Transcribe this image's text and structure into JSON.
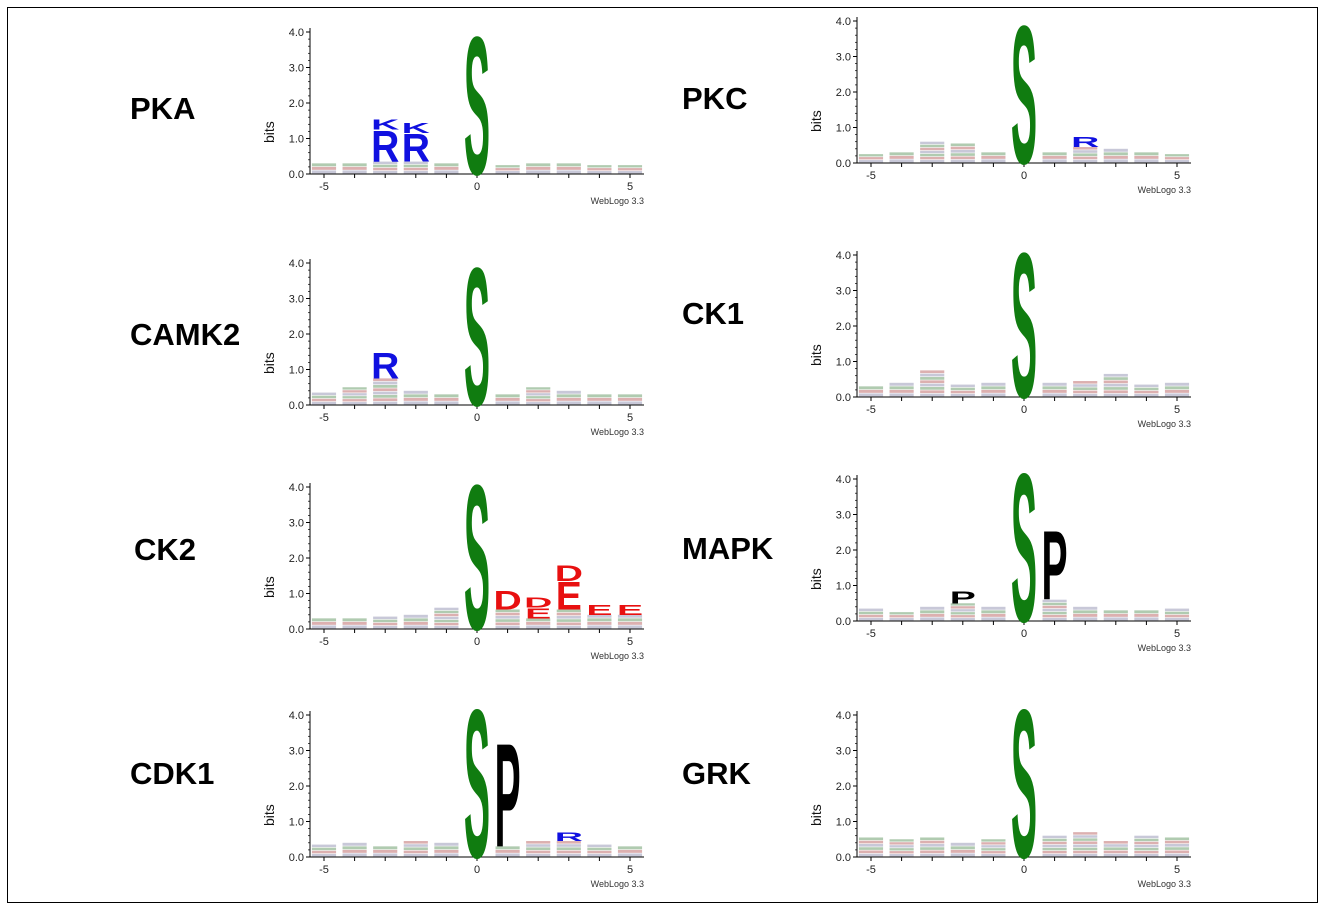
{
  "colors": {
    "green": "#107C10",
    "blue": "#1010E0",
    "red": "#E81010",
    "black": "#000000",
    "axis": "#000000"
  },
  "axis": {
    "ylabel": "bits",
    "yticks": [
      "0.0",
      "1.0",
      "2.0",
      "3.0",
      "4.0"
    ],
    "xticks": [
      "-5",
      "0",
      "5"
    ],
    "watermark": "WebLogo 3.3"
  },
  "chart_data": [
    {
      "type": "sequence-logo",
      "title": "PKA",
      "xlim": [
        -6,
        6
      ],
      "ylim": [
        0,
        4
      ],
      "stacks": [
        {
          "x": -5,
          "total": 0.3,
          "letters": []
        },
        {
          "x": -4,
          "total": 0.3,
          "letters": []
        },
        {
          "x": -3,
          "total": 1.55,
          "letters": [
            [
              "R",
              0.9,
              "blue"
            ],
            [
              "K",
              0.3,
              "blue"
            ]
          ]
        },
        {
          "x": -2,
          "total": 1.45,
          "letters": [
            [
              "R",
              0.8,
              "blue"
            ],
            [
              "K",
              0.3,
              "blue"
            ]
          ]
        },
        {
          "x": -1,
          "total": 0.3,
          "letters": []
        },
        {
          "x": 0,
          "total": 4.0,
          "letters": [
            [
              "S",
              4.0,
              "green"
            ]
          ]
        },
        {
          "x": 1,
          "total": 0.25,
          "letters": []
        },
        {
          "x": 2,
          "total": 0.3,
          "letters": []
        },
        {
          "x": 3,
          "total": 0.3,
          "letters": []
        },
        {
          "x": 4,
          "total": 0.25,
          "letters": []
        },
        {
          "x": 5,
          "total": 0.25,
          "letters": []
        }
      ]
    },
    {
      "type": "sequence-logo",
      "title": "PKC",
      "xlim": [
        -6,
        6
      ],
      "ylim": [
        0,
        4
      ],
      "stacks": [
        {
          "x": -5,
          "total": 0.25,
          "letters": []
        },
        {
          "x": -4,
          "total": 0.3,
          "letters": []
        },
        {
          "x": -3,
          "total": 0.6,
          "letters": []
        },
        {
          "x": -2,
          "total": 0.55,
          "letters": []
        },
        {
          "x": -1,
          "total": 0.3,
          "letters": []
        },
        {
          "x": 0,
          "total": 4.0,
          "letters": [
            [
              "S",
              4.0,
              "green"
            ]
          ]
        },
        {
          "x": 1,
          "total": 0.3,
          "letters": []
        },
        {
          "x": 2,
          "total": 0.75,
          "letters": [
            [
              "R",
              0.3,
              "blue"
            ]
          ]
        },
        {
          "x": 3,
          "total": 0.4,
          "letters": []
        },
        {
          "x": 4,
          "total": 0.3,
          "letters": []
        },
        {
          "x": 5,
          "total": 0.25,
          "letters": []
        }
      ]
    },
    {
      "type": "sequence-logo",
      "title": "CAMK2",
      "xlim": [
        -6,
        6
      ],
      "ylim": [
        0,
        4
      ],
      "stacks": [
        {
          "x": -5,
          "total": 0.35,
          "letters": []
        },
        {
          "x": -4,
          "total": 0.5,
          "letters": []
        },
        {
          "x": -3,
          "total": 1.5,
          "letters": [
            [
              "R",
              0.75,
              "blue"
            ]
          ]
        },
        {
          "x": -2,
          "total": 0.4,
          "letters": []
        },
        {
          "x": -1,
          "total": 0.3,
          "letters": []
        },
        {
          "x": 0,
          "total": 4.0,
          "letters": [
            [
              "S",
              4.0,
              "green"
            ]
          ]
        },
        {
          "x": 1,
          "total": 0.3,
          "letters": []
        },
        {
          "x": 2,
          "total": 0.5,
          "letters": []
        },
        {
          "x": 3,
          "total": 0.4,
          "letters": []
        },
        {
          "x": 4,
          "total": 0.3,
          "letters": []
        },
        {
          "x": 5,
          "total": 0.3,
          "letters": []
        }
      ]
    },
    {
      "type": "sequence-logo",
      "title": "CK1",
      "xlim": [
        -6,
        6
      ],
      "ylim": [
        0,
        4
      ],
      "stacks": [
        {
          "x": -5,
          "total": 0.3,
          "letters": []
        },
        {
          "x": -4,
          "total": 0.4,
          "letters": []
        },
        {
          "x": -3,
          "total": 0.75,
          "letters": []
        },
        {
          "x": -2,
          "total": 0.35,
          "letters": []
        },
        {
          "x": -1,
          "total": 0.4,
          "letters": []
        },
        {
          "x": 0,
          "total": 4.2,
          "letters": [
            [
              "S",
              4.2,
              "green"
            ]
          ]
        },
        {
          "x": 1,
          "total": 0.4,
          "letters": []
        },
        {
          "x": 2,
          "total": 0.45,
          "letters": []
        },
        {
          "x": 3,
          "total": 0.65,
          "letters": []
        },
        {
          "x": 4,
          "total": 0.35,
          "letters": []
        },
        {
          "x": 5,
          "total": 0.4,
          "letters": []
        }
      ]
    },
    {
      "type": "sequence-logo",
      "title": "CK2",
      "xlim": [
        -6,
        6
      ],
      "ylim": [
        0,
        4
      ],
      "stacks": [
        {
          "x": -5,
          "total": 0.3,
          "letters": []
        },
        {
          "x": -4,
          "total": 0.3,
          "letters": []
        },
        {
          "x": -3,
          "total": 0.35,
          "letters": []
        },
        {
          "x": -2,
          "total": 0.4,
          "letters": []
        },
        {
          "x": -1,
          "total": 0.6,
          "letters": []
        },
        {
          "x": 0,
          "total": 4.2,
          "letters": [
            [
              "S",
              4.2,
              "green"
            ]
          ]
        },
        {
          "x": 1,
          "total": 1.1,
          "letters": [
            [
              "D",
              0.55,
              "red"
            ]
          ]
        },
        {
          "x": 2,
          "total": 0.9,
          "letters": [
            [
              "E",
              0.3,
              "red"
            ],
            [
              "D",
              0.3,
              "red"
            ]
          ]
        },
        {
          "x": 3,
          "total": 1.8,
          "letters": [
            [
              "E",
              0.8,
              "red"
            ],
            [
              "D",
              0.45,
              "red"
            ]
          ]
        },
        {
          "x": 4,
          "total": 0.7,
          "letters": [
            [
              "E",
              0.3,
              "red"
            ]
          ]
        },
        {
          "x": 5,
          "total": 0.7,
          "letters": [
            [
              "E",
              0.3,
              "red"
            ]
          ]
        }
      ]
    },
    {
      "type": "sequence-logo",
      "title": "MAPK",
      "xlim": [
        -6,
        6
      ],
      "ylim": [
        0,
        4
      ],
      "stacks": [
        {
          "x": -5,
          "total": 0.35,
          "letters": []
        },
        {
          "x": -4,
          "total": 0.25,
          "letters": []
        },
        {
          "x": -3,
          "total": 0.4,
          "letters": []
        },
        {
          "x": -2,
          "total": 0.85,
          "letters": [
            [
              "P",
              0.35,
              "black"
            ]
          ]
        },
        {
          "x": -1,
          "total": 0.4,
          "letters": []
        },
        {
          "x": 0,
          "total": 4.3,
          "letters": [
            [
              "S",
              4.3,
              "green"
            ]
          ]
        },
        {
          "x": 1,
          "total": 2.6,
          "letters": [
            [
              "P",
              2.0,
              "black"
            ]
          ]
        },
        {
          "x": 2,
          "total": 0.4,
          "letters": []
        },
        {
          "x": 3,
          "total": 0.3,
          "letters": []
        },
        {
          "x": 4,
          "total": 0.3,
          "letters": []
        },
        {
          "x": 5,
          "total": 0.35,
          "letters": []
        }
      ]
    },
    {
      "type": "sequence-logo",
      "title": "CDK1",
      "xlim": [
        -6,
        6
      ],
      "ylim": [
        0,
        4
      ],
      "stacks": [
        {
          "x": -5,
          "total": 0.35,
          "letters": []
        },
        {
          "x": -4,
          "total": 0.4,
          "letters": []
        },
        {
          "x": -3,
          "total": 0.3,
          "letters": []
        },
        {
          "x": -2,
          "total": 0.45,
          "letters": []
        },
        {
          "x": -1,
          "total": 0.4,
          "letters": []
        },
        {
          "x": 0,
          "total": 4.3,
          "letters": [
            [
              "S",
              4.3,
              "green"
            ]
          ]
        },
        {
          "x": 1,
          "total": 3.3,
          "letters": [
            [
              "P",
              3.0,
              "black"
            ]
          ]
        },
        {
          "x": 2,
          "total": 0.45,
          "letters": []
        },
        {
          "x": 3,
          "total": 0.7,
          "letters": [
            [
              "R",
              0.25,
              "blue"
            ]
          ]
        },
        {
          "x": 4,
          "total": 0.35,
          "letters": []
        },
        {
          "x": 5,
          "total": 0.3,
          "letters": []
        }
      ]
    },
    {
      "type": "sequence-logo",
      "title": "GRK",
      "xlim": [
        -6,
        6
      ],
      "ylim": [
        0,
        4
      ],
      "stacks": [
        {
          "x": -5,
          "total": 0.55,
          "letters": []
        },
        {
          "x": -4,
          "total": 0.5,
          "letters": []
        },
        {
          "x": -3,
          "total": 0.55,
          "letters": []
        },
        {
          "x": -2,
          "total": 0.4,
          "letters": []
        },
        {
          "x": -1,
          "total": 0.5,
          "letters": []
        },
        {
          "x": 0,
          "total": 4.3,
          "letters": [
            [
              "S",
              4.3,
              "green"
            ]
          ]
        },
        {
          "x": 1,
          "total": 0.6,
          "letters": []
        },
        {
          "x": 2,
          "total": 0.7,
          "letters": []
        },
        {
          "x": 3,
          "total": 0.45,
          "letters": []
        },
        {
          "x": 4,
          "total": 0.6,
          "letters": []
        },
        {
          "x": 5,
          "total": 0.55,
          "letters": []
        }
      ]
    }
  ]
}
